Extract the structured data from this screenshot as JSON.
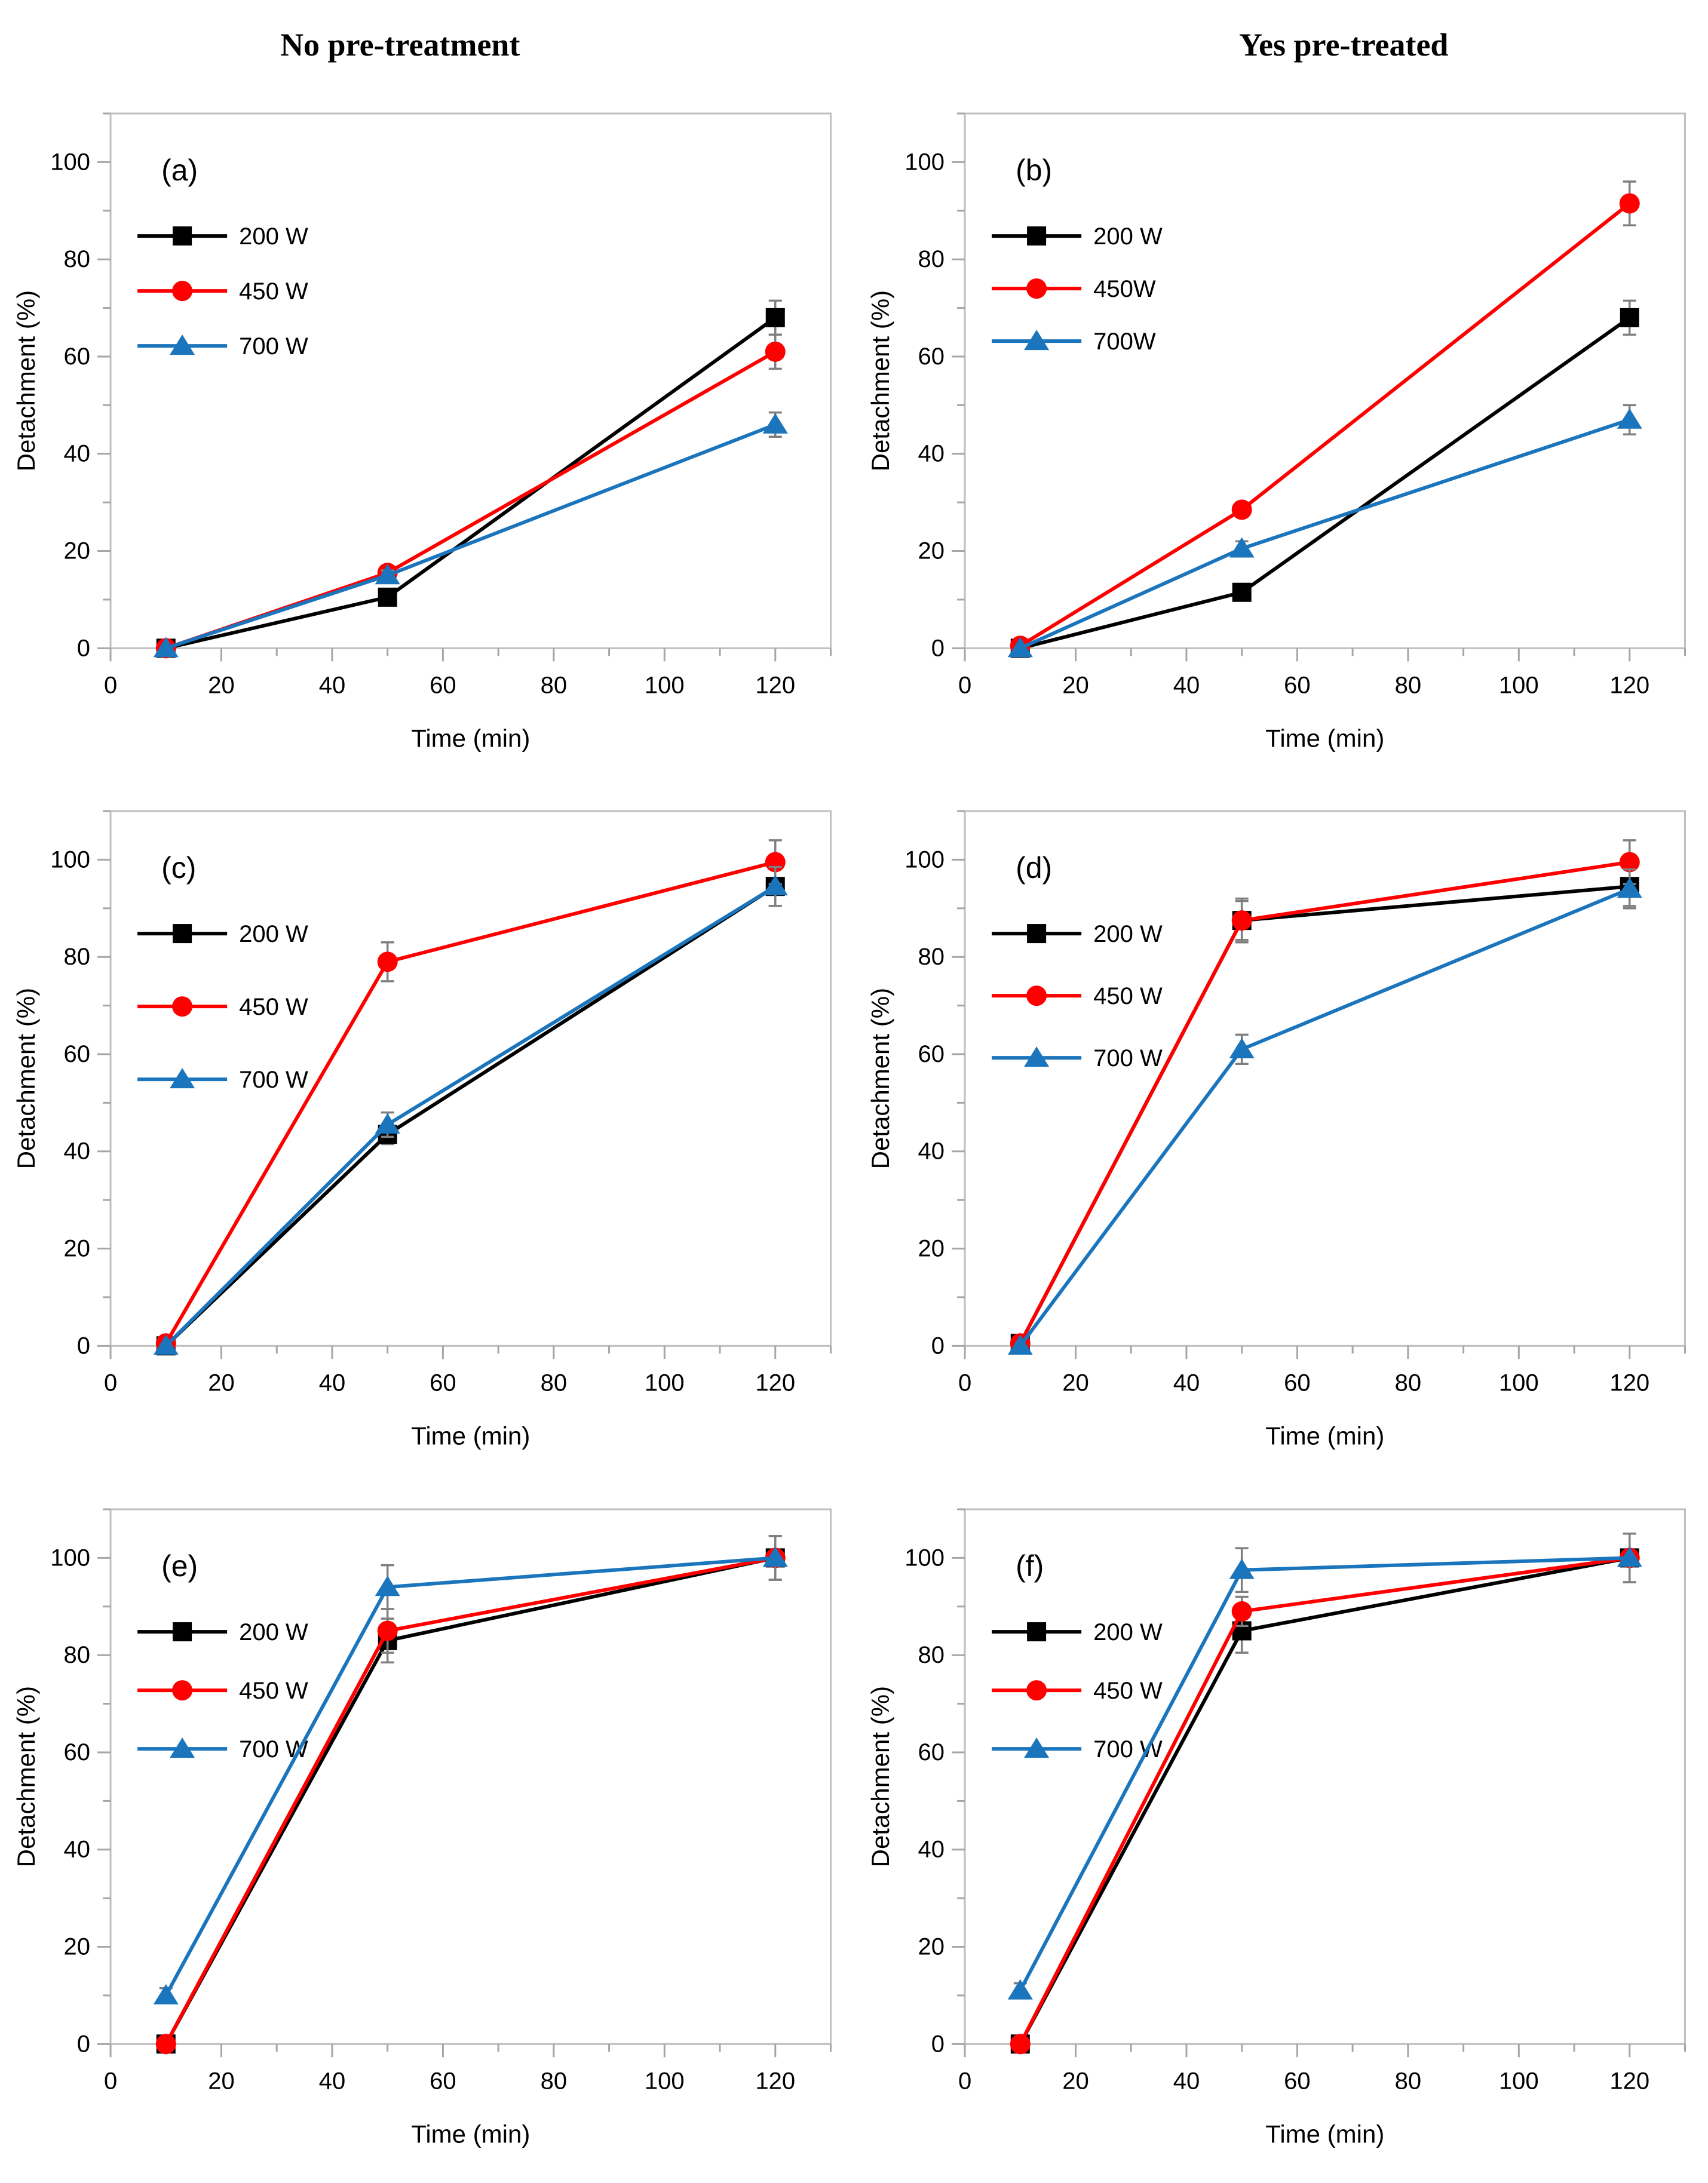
{
  "page": {
    "left_column_title": "No pre-treatment",
    "right_column_title": "Yes pre-treated"
  },
  "style": {
    "series_colors": {
      "black": "#000000",
      "red": "#FE0000",
      "blue": "#1B75BC"
    },
    "axis_color": "#BFBFBF",
    "tick_color": "#A6A6A6",
    "error_bar_color": "#7F7F7F",
    "text_color": "#000000",
    "plot_background": "#FFFFFF"
  },
  "chart_data": [
    {
      "panel_label": "(a)",
      "type": "line",
      "xlabel": "Time (min)",
      "ylabel": "Detachment (%)",
      "xlim": [
        0,
        130
      ],
      "ylim": [
        0,
        110
      ],
      "xticks": [
        0,
        20,
        40,
        60,
        80,
        100,
        120
      ],
      "yticks": [
        0,
        20,
        40,
        60,
        80,
        100
      ],
      "minor_tick_step": 10,
      "grid": false,
      "legend_position": "top-left",
      "legend_gap": 92,
      "x": [
        10,
        50,
        120
      ],
      "series": [
        {
          "name": "200 W",
          "color": "black",
          "marker": "square",
          "values": [
            0,
            10.5,
            68
          ],
          "errors": [
            0,
            1,
            3.5
          ]
        },
        {
          "name": "450 W",
          "color": "red",
          "marker": "circle",
          "values": [
            0,
            15.5,
            61
          ],
          "errors": [
            0,
            1,
            3.5
          ]
        },
        {
          "name": "700 W",
          "color": "blue",
          "marker": "triangle",
          "values": [
            0,
            15,
            46
          ],
          "errors": [
            0,
            1,
            2.5
          ]
        }
      ]
    },
    {
      "panel_label": "(b)",
      "type": "line",
      "xlabel": "Time (min)",
      "ylabel": "Detachment (%)",
      "xlim": [
        0,
        130
      ],
      "ylim": [
        0,
        110
      ],
      "xticks": [
        0,
        20,
        40,
        60,
        80,
        100,
        120
      ],
      "yticks": [
        0,
        20,
        40,
        60,
        80,
        100
      ],
      "minor_tick_step": 10,
      "grid": false,
      "legend_position": "top-left",
      "legend_gap": 88,
      "x": [
        10,
        50,
        120
      ],
      "series": [
        {
          "name": "200 W",
          "color": "black",
          "marker": "square",
          "values": [
            0,
            11.5,
            68
          ],
          "errors": [
            0,
            1,
            3.5
          ]
        },
        {
          "name": "450W",
          "color": "red",
          "marker": "circle",
          "values": [
            0.5,
            28.5,
            91.5
          ],
          "errors": [
            0,
            1.5,
            4.5
          ]
        },
        {
          "name": "700W",
          "color": "blue",
          "marker": "triangle",
          "values": [
            0,
            20.5,
            47
          ],
          "errors": [
            0,
            1.5,
            3
          ]
        }
      ]
    },
    {
      "panel_label": "(c)",
      "type": "line",
      "xlabel": "Time (min)",
      "ylabel": "Detachment (%)",
      "xlim": [
        0,
        130
      ],
      "ylim": [
        0,
        110
      ],
      "xticks": [
        0,
        20,
        40,
        60,
        80,
        100,
        120
      ],
      "yticks": [
        0,
        20,
        40,
        60,
        80,
        100
      ],
      "minor_tick_step": 10,
      "grid": false,
      "legend_position": "top-left",
      "legend_gap": 122,
      "x": [
        10,
        50,
        120
      ],
      "series": [
        {
          "name": "200 W",
          "color": "black",
          "marker": "square",
          "values": [
            0,
            43.5,
            94.5
          ],
          "errors": [
            0,
            2,
            4
          ]
        },
        {
          "name": "450 W",
          "color": "red",
          "marker": "circle",
          "values": [
            0.5,
            79,
            99.5
          ],
          "errors": [
            0,
            4,
            4.5
          ]
        },
        {
          "name": "700 W",
          "color": "blue",
          "marker": "triangle",
          "values": [
            0,
            45.5,
            94.5
          ],
          "errors": [
            0,
            2.5,
            4
          ]
        }
      ]
    },
    {
      "panel_label": "(d)",
      "type": "line",
      "xlabel": "Time (min)",
      "ylabel": "Detachment (%)",
      "xlim": [
        0,
        130
      ],
      "ylim": [
        0,
        110
      ],
      "xticks": [
        0,
        20,
        40,
        60,
        80,
        100,
        120
      ],
      "yticks": [
        0,
        20,
        40,
        60,
        80,
        100
      ],
      "minor_tick_step": 10,
      "grid": false,
      "legend_position": "top-left",
      "legend_gap": 104,
      "x": [
        10,
        50,
        120
      ],
      "series": [
        {
          "name": "200 W",
          "color": "black",
          "marker": "square",
          "values": [
            0.5,
            87.5,
            94.5
          ],
          "errors": [
            1,
            4.5,
            4
          ]
        },
        {
          "name": "450 W",
          "color": "red",
          "marker": "circle",
          "values": [
            0.5,
            87.5,
            99.5
          ],
          "errors": [
            1,
            4,
            4.5
          ]
        },
        {
          "name": "700 W",
          "color": "blue",
          "marker": "triangle",
          "values": [
            0,
            61,
            94
          ],
          "errors": [
            0,
            3,
            4
          ]
        }
      ]
    },
    {
      "panel_label": "(e)",
      "type": "line",
      "xlabel": "Time (min)",
      "ylabel": "Detachment (%)",
      "xlim": [
        0,
        130
      ],
      "ylim": [
        0,
        110
      ],
      "xticks": [
        0,
        20,
        40,
        60,
        80,
        100,
        120
      ],
      "yticks": [
        0,
        20,
        40,
        60,
        80,
        100
      ],
      "minor_tick_step": 10,
      "grid": false,
      "legend_position": "top-left",
      "legend_gap": 98,
      "x": [
        10,
        50,
        120
      ],
      "series": [
        {
          "name": "200 W",
          "color": "black",
          "marker": "square",
          "values": [
            0,
            83,
            100
          ],
          "errors": [
            0,
            4.5,
            4.5
          ]
        },
        {
          "name": "450 W",
          "color": "red",
          "marker": "circle",
          "values": [
            0,
            85,
            100
          ],
          "errors": [
            0,
            4.5,
            4.5
          ]
        },
        {
          "name": "700 W",
          "color": "blue",
          "marker": "triangle",
          "values": [
            10,
            94,
            100
          ],
          "errors": [
            1.5,
            4.5,
            4.5
          ]
        }
      ]
    },
    {
      "panel_label": "(f)",
      "type": "line",
      "xlabel": "Time (min)",
      "ylabel": "Detachment (%)",
      "xlim": [
        0,
        130
      ],
      "ylim": [
        0,
        110
      ],
      "xticks": [
        0,
        20,
        40,
        60,
        80,
        100,
        120
      ],
      "yticks": [
        0,
        20,
        40,
        60,
        80,
        100
      ],
      "minor_tick_step": 10,
      "grid": false,
      "legend_position": "top-left",
      "legend_gap": 98,
      "x": [
        10,
        50,
        120
      ],
      "series": [
        {
          "name": "200 W",
          "color": "black",
          "marker": "square",
          "values": [
            0,
            85,
            100
          ],
          "errors": [
            0,
            4.5,
            5
          ]
        },
        {
          "name": "450 W",
          "color": "red",
          "marker": "circle",
          "values": [
            0,
            89,
            100
          ],
          "errors": [
            0,
            3,
            5
          ]
        },
        {
          "name": "700 W",
          "color": "blue",
          "marker": "triangle",
          "values": [
            11,
            97.5,
            100
          ],
          "errors": [
            1.5,
            4.5,
            5
          ]
        }
      ]
    }
  ]
}
